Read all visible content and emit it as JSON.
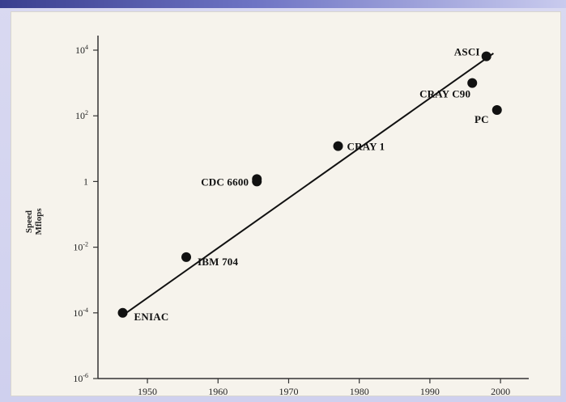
{
  "chart_data": {
    "type": "scatter",
    "title": "",
    "xlabel": "",
    "ylabel": "Speed MFlops",
    "ylabel_lines": [
      "Speed",
      "Mflops"
    ],
    "y_scale": "log",
    "xlim": [
      1943,
      2004
    ],
    "ylim": [
      1e-06,
      10000.0
    ],
    "x_ticks": [
      1950,
      1960,
      1970,
      1980,
      1990,
      2000
    ],
    "x_tick_labels": [
      "1950",
      "1960",
      "1970",
      "1980",
      "1990",
      "2000"
    ],
    "y_ticks": [
      1e-06,
      0.0001,
      0.01,
      1,
      100.0,
      10000.0
    ],
    "y_tick_labels": [
      {
        "base": "10",
        "exp": "-6"
      },
      {
        "base": "10",
        "exp": "-4"
      },
      {
        "base": "10",
        "exp": "-2"
      },
      {
        "base": "1",
        "exp": ""
      },
      {
        "base": "10",
        "exp": "2"
      },
      {
        "base": "10",
        "exp": "4"
      }
    ],
    "grid": false,
    "series": [
      {
        "points": [
          {
            "label": "ENIAC",
            "x": 1946.5,
            "y": 0.0001
          },
          {
            "label": "IBM 704",
            "x": 1955.5,
            "y": 0.005
          },
          {
            "label": "CDC 6600",
            "x": 1965.5,
            "y": 1
          },
          {
            "label": "CRAY 1",
            "x": 1977,
            "y": 12
          },
          {
            "label": "CRAY C90",
            "x": 1996,
            "y": 1000
          },
          {
            "label": "PC",
            "x": 1999.5,
            "y": 150
          },
          {
            "label": "ASCI",
            "x": 1998,
            "y": 6500
          }
        ]
      }
    ],
    "trend_line": {
      "x": [
        1947,
        1999
      ],
      "y": [
        0.0001,
        8000
      ]
    },
    "colors": {
      "points": "#111111",
      "line": "#111111",
      "axis": "#333333"
    }
  }
}
